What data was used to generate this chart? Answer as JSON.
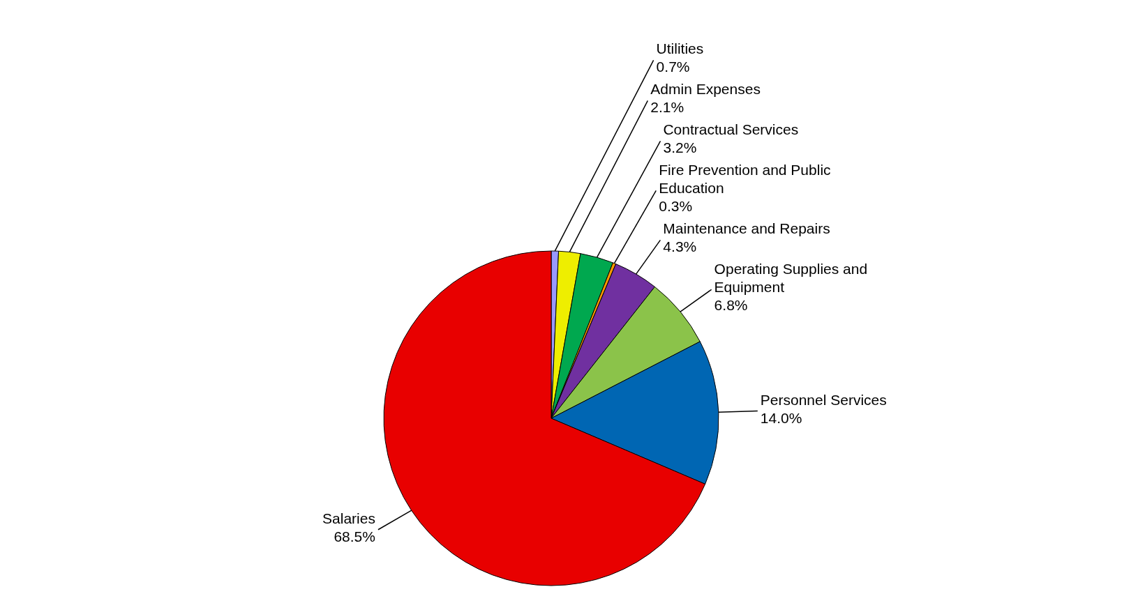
{
  "chart_data": {
    "type": "pie",
    "categories": [
      "Utilities",
      "Admin Expenses",
      "Contractual Services",
      "Fire Prevention and Public Education",
      "Maintenance and Repairs",
      "Operating Supplies and Equipment",
      "Personnel Services",
      "Salaries"
    ],
    "values": [
      0.7,
      2.1,
      3.2,
      0.3,
      4.3,
      6.8,
      14.0,
      68.5
    ],
    "colors": [
      "#9999ff",
      "#eeee00",
      "#00a84f",
      "#ff9900",
      "#7030a0",
      "#8bc34a",
      "#0066b3",
      "#e80000"
    ],
    "value_labels": [
      "0.7%",
      "2.1%",
      "3.2%",
      "0.3%",
      "4.3%",
      "6.8%",
      "14.0%",
      "68.5%"
    ]
  }
}
